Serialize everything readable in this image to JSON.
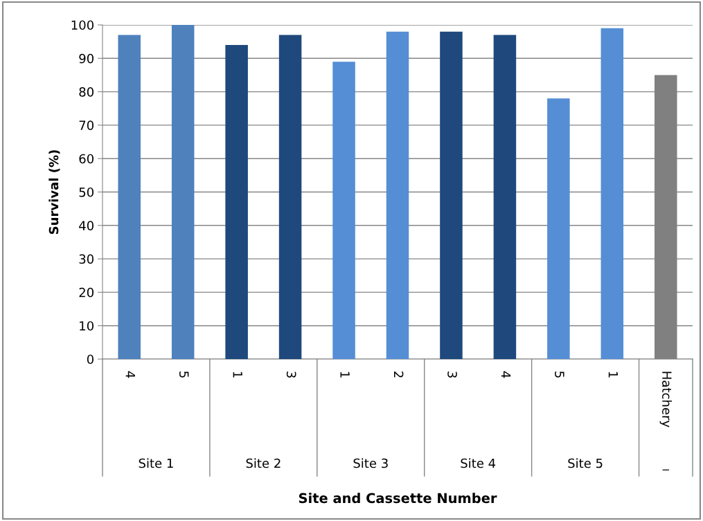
{
  "chart_data": {
    "type": "bar",
    "xlabel": "Site and Cassette Number",
    "ylabel": "Survival (%)",
    "categories": [
      "4",
      "5",
      "1",
      "3",
      "1",
      "2",
      "3",
      "4",
      "5",
      "1",
      "Hatchery"
    ],
    "values": [
      97,
      100,
      94,
      97,
      89,
      98,
      98,
      97,
      78,
      99,
      85
    ],
    "colors": [
      "#4f81bd",
      "#4f81bd",
      "#1f497d",
      "#1f497d",
      "#558ed5",
      "#558ed5",
      "#1f497d",
      "#1f497d",
      "#558ed5",
      "#558ed5",
      "#808080"
    ],
    "ylim": [
      0,
      100
    ],
    "yticks": [
      0,
      10,
      20,
      30,
      40,
      50,
      60,
      70,
      80,
      90,
      100
    ],
    "grid": "y",
    "annotations": [
      "Site 1",
      "Site 2",
      "Site 3",
      "Site 4",
      "Site 5",
      "_"
    ]
  }
}
